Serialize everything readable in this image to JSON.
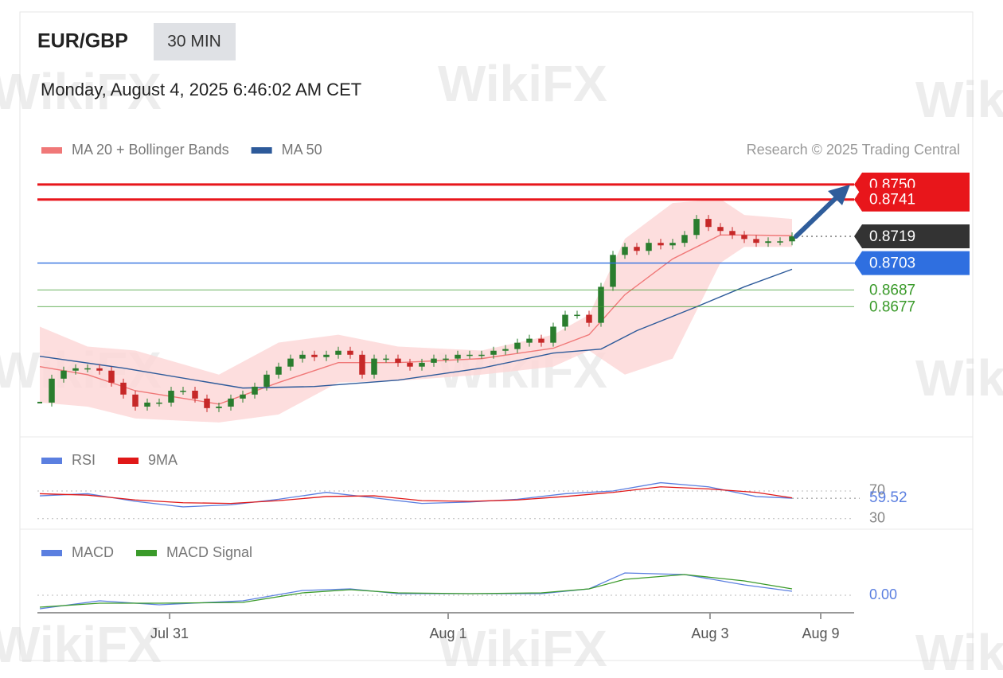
{
  "header": {
    "symbol": "EUR/GBP",
    "timeframe": "30 MIN",
    "datetime": "Monday, August 4, 2025 6:46:02 AM CET"
  },
  "credit": "Research © 2025 Trading Central",
  "watermark": "WikiFX",
  "chart_data": [
    {
      "type": "candlestick",
      "xlim": [
        -0.2,
        68.2
      ],
      "ylim": [
        0.8601,
        0.8758
      ],
      "up_color": "#2a7d2e",
      "down_color": "#c62828",
      "values": [
        0.86196,
        0.86339,
        0.86387,
        0.86401,
        0.86401,
        0.86387,
        0.86315,
        0.86244,
        0.86172,
        0.86196,
        0.86196,
        0.86267,
        0.86267,
        0.8622,
        0.86163,
        0.86172,
        0.8622,
        0.86244,
        0.86291,
        0.86363,
        0.86411,
        0.86459,
        0.86482,
        0.86468,
        0.86482,
        0.86506,
        0.86482,
        0.86363,
        0.86459,
        0.86459,
        0.86434,
        0.86411,
        0.86434,
        0.86459,
        0.86459,
        0.86482,
        0.86482,
        0.86482,
        0.86506,
        0.86516,
        0.86554,
        0.86578,
        0.86554,
        0.8665,
        0.86721,
        0.86721,
        0.86673,
        0.86888,
        0.87079,
        0.87127,
        0.87103,
        0.87151,
        0.87136,
        0.87151,
        0.87198,
        0.87294,
        0.87246,
        0.87222,
        0.87198,
        0.87174,
        0.87151,
        0.8716,
        0.8716,
        0.8719
      ],
      "series": [
        {
          "name": "MA 20 + Bollinger Bands",
          "color": "#f07878",
          "band_color": "#fcd6d6",
          "x": [
            0,
            4,
            8,
            15,
            20,
            25,
            30,
            37,
            43,
            46,
            49,
            53,
            57,
            59,
            63
          ],
          "values": [
            0.86411,
            0.86363,
            0.86267,
            0.86187,
            0.86316,
            0.86435,
            0.86435,
            0.86459,
            0.86521,
            0.86602,
            0.86841,
            0.87055,
            0.87198,
            0.87198,
            0.87194
          ],
          "upper": [
            0.8665,
            0.86531,
            0.86507,
            0.86363,
            0.86555,
            0.86602,
            0.86531,
            0.86507,
            0.86602,
            0.86721,
            0.87175,
            0.87389,
            0.87413,
            0.87318,
            0.87294
          ],
          "lower": [
            0.86196,
            0.86172,
            0.86101,
            0.86077,
            0.86125,
            0.86316,
            0.86326,
            0.86363,
            0.86411,
            0.86507,
            0.86363,
            0.86459,
            0.87031,
            0.87127,
            0.87127
          ]
        },
        {
          "name": "MA 50",
          "color": "#2d5a9a",
          "x": [
            0,
            7,
            17,
            23,
            30,
            37,
            43,
            47,
            50,
            55,
            59,
            63
          ],
          "values": [
            0.86473,
            0.86402,
            0.86283,
            0.86292,
            0.8633,
            0.86402,
            0.86492,
            0.86516,
            0.86626,
            0.86769,
            0.86888,
            0.86993
          ]
        }
      ],
      "levels": [
        {
          "value": 0.875,
          "label": "0.8750",
          "color": "#e8161b",
          "style": "box",
          "line": "solid"
        },
        {
          "value": 0.8741,
          "label": "0.8741",
          "color": "#e8161b",
          "style": "box",
          "line": "solid"
        },
        {
          "value": 0.8719,
          "label": "0.8719",
          "color": "#333333",
          "style": "box",
          "line": "dotted"
        },
        {
          "value": 0.8703,
          "label": "0.8703",
          "color": "#2f6fe0",
          "style": "box",
          "line": "solid"
        },
        {
          "value": 0.8687,
          "label": "0.8687",
          "color": "#3a9a2a",
          "style": "text",
          "line": "solid"
        },
        {
          "value": 0.8677,
          "label": "0.8677",
          "color": "#3a9a2a",
          "style": "text",
          "line": "solid"
        }
      ]
    },
    {
      "type": "line",
      "xlim": [
        -0.2,
        68.2
      ],
      "ylim": [
        17,
        93
      ],
      "yticks": [
        70,
        30
      ],
      "series": [
        {
          "name": "RSI",
          "color": "#5b7fe0",
          "x": [
            0,
            4,
            8,
            12,
            16,
            20,
            24,
            28,
            32,
            36,
            40,
            44,
            48,
            52,
            56,
            60,
            63
          ],
          "values": [
            63,
            66,
            55,
            47,
            50,
            58,
            68,
            60,
            52,
            54,
            58,
            66,
            70,
            82,
            76,
            62,
            59.52
          ]
        },
        {
          "name": "9MA",
          "color": "#e01818",
          "x": [
            0,
            4,
            8,
            12,
            16,
            20,
            24,
            28,
            32,
            36,
            40,
            44,
            48,
            52,
            56,
            60,
            63
          ],
          "values": [
            66,
            64,
            57,
            53,
            52,
            56,
            62,
            63,
            56,
            55,
            57,
            62,
            68,
            76,
            73,
            68,
            60
          ]
        }
      ]
    },
    {
      "type": "line",
      "xlim": [
        -0.2,
        68.2
      ],
      "ylim": [
        -0.0005,
        0.0012
      ],
      "yticks": [
        {
          "value": 0,
          "label": "0.00"
        }
      ],
      "xticks": [
        {
          "value": 10.87,
          "label": "Jul 31"
        },
        {
          "value": 34.2,
          "label": "Aug 1"
        },
        {
          "value": 56.13,
          "label": "Aug 3"
        },
        {
          "value": 65.4,
          "label": "Aug 9"
        }
      ],
      "series": [
        {
          "name": "MACD",
          "color": "#5b7fe0",
          "x": [
            0,
            5,
            10,
            17,
            22,
            26,
            30,
            36,
            42,
            46,
            49,
            54,
            59,
            63
          ],
          "values": [
            -0.000425,
            -0.000175,
            -0.0003,
            -0.000175,
            0.00015,
            0.0002,
            5e-05,
            5e-05,
            5e-05,
            0.0002,
            0.0007,
            0.00065,
            0.000325,
            0.000125
          ]
        },
        {
          "name": "MACD Signal",
          "color": "#3a9a2a",
          "x": [
            0,
            5,
            10,
            17,
            22,
            26,
            30,
            36,
            42,
            46,
            49,
            54,
            59,
            63
          ],
          "values": [
            -0.000375,
            -0.00025,
            -0.00025,
            -0.000225,
            7.5e-05,
            0.000175,
            7.5e-05,
            5e-05,
            7.5e-05,
            0.0002,
            0.0005,
            0.00065,
            0.00045,
            0.0002
          ]
        }
      ]
    }
  ]
}
